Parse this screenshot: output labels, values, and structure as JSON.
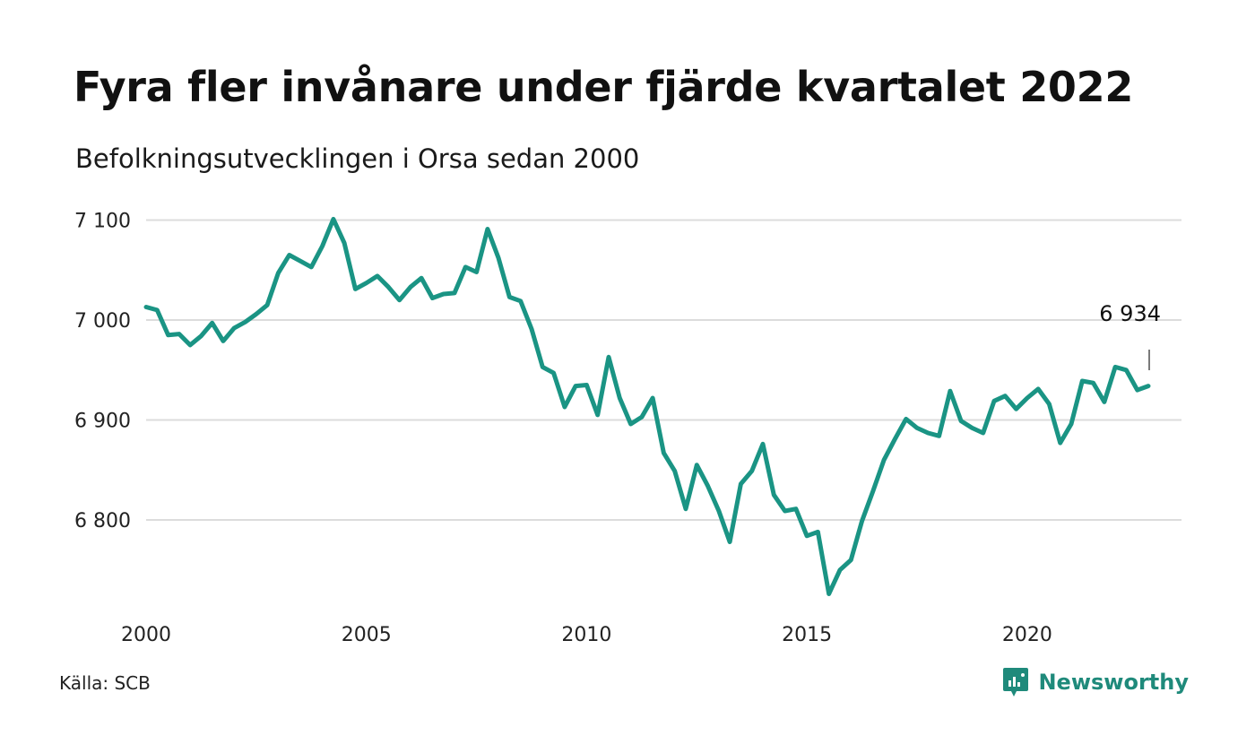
{
  "header": {
    "title": "Fyra fler invånare under fjärde kvartalet 2022",
    "subtitle": "Befolkningsutvecklingen i Orsa sedan 2000"
  },
  "footer": {
    "source": "Källa: SCB",
    "brand": "Newsworthy",
    "brand_icon": "newsworthy-logo-icon"
  },
  "colors": {
    "line": "#1a9484",
    "grid": "#dcdcdc",
    "brand": "#1f8a7b"
  },
  "chart_data": {
    "type": "line",
    "xlim": [
      2000,
      2023
    ],
    "ylim": [
      6720,
      7110
    ],
    "yticks": [
      7100,
      7000,
      6900,
      6800
    ],
    "ytick_labels": [
      "7 100",
      "7 000",
      "6 900",
      "6 800"
    ],
    "xticks": [
      2000,
      2005,
      2010,
      2015,
      2020
    ],
    "xtick_labels": [
      "2000",
      "2005",
      "2010",
      "2015",
      "2020"
    ],
    "grid": true,
    "annotation": {
      "x": 2022.75,
      "y": 6934,
      "label": "6 934"
    },
    "series": [
      {
        "x": [
          2000.0,
          2000.25,
          2000.5,
          2000.75,
          2001.0,
          2001.25,
          2001.5,
          2001.75,
          2002.0,
          2002.25,
          2002.5,
          2002.75,
          2003.0,
          2003.25,
          2003.5,
          2003.75,
          2004.0,
          2004.25,
          2004.5,
          2004.75,
          2005.0,
          2005.25,
          2005.5,
          2005.75,
          2006.0,
          2006.25,
          2006.5,
          2006.75,
          2007.0,
          2007.25,
          2007.5,
          2007.75,
          2008.0,
          2008.25,
          2008.5,
          2008.75,
          2009.0,
          2009.25,
          2009.5,
          2009.75,
          2010.0,
          2010.25,
          2010.5,
          2010.75,
          2011.0,
          2011.25,
          2011.5,
          2011.75,
          2012.0,
          2012.25,
          2012.5,
          2012.75,
          2013.0,
          2013.25,
          2013.5,
          2013.75,
          2014.0,
          2014.25,
          2014.5,
          2014.75,
          2015.0,
          2015.25,
          2015.5,
          2015.75,
          2016.0,
          2016.25,
          2016.5,
          2016.75,
          2017.0,
          2017.25,
          2017.5,
          2017.75,
          2018.0,
          2018.25,
          2018.5,
          2018.75,
          2019.0,
          2019.25,
          2019.5,
          2019.75,
          2020.0,
          2020.25,
          2020.5,
          2020.75,
          2021.0,
          2021.25,
          2021.5,
          2021.75,
          2022.0,
          2022.25,
          2022.5,
          2022.75
        ],
        "y": [
          7013,
          7010,
          6985,
          6986,
          6975,
          6984,
          6997,
          6979,
          6992,
          6998,
          7006,
          7015,
          7047,
          7065,
          7059,
          7053,
          7074,
          7101,
          7077,
          7031,
          7037,
          7044,
          7033,
          7020,
          7033,
          7042,
          7022,
          7026,
          7027,
          7053,
          7048,
          7091,
          7062,
          7023,
          7019,
          6991,
          6953,
          6947,
          6913,
          6934,
          6935,
          6905,
          6963,
          6922,
          6896,
          6903,
          6922,
          6867,
          6849,
          6811,
          6855,
          6834,
          6809,
          6778,
          6836,
          6849,
          6876,
          6825,
          6809,
          6811,
          6784,
          6788,
          6726,
          6750,
          6760,
          6799,
          6829,
          6860,
          6881,
          6901,
          6892,
          6887,
          6884,
          6929,
          6899,
          6892,
          6887,
          6919,
          6924,
          6911,
          6922,
          6931,
          6916,
          6877,
          6896,
          6939,
          6937,
          6918,
          6953,
          6950,
          6930,
          6934
        ]
      }
    ]
  }
}
